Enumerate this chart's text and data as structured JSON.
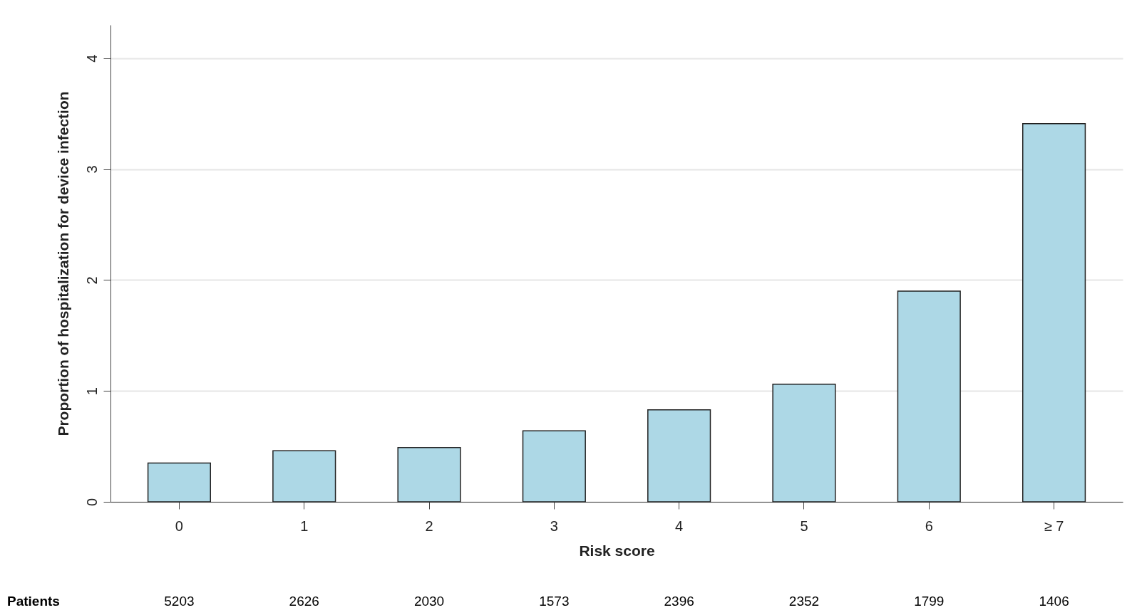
{
  "chart_data": {
    "type": "bar",
    "xlabel": "Risk score",
    "ylabel": "Proportion of hospitalization for device infection",
    "categories": [
      "0",
      "1",
      "2",
      "3",
      "4",
      "5",
      "6",
      "≥ 7"
    ],
    "values": [
      0.35,
      0.46,
      0.49,
      0.64,
      0.83,
      1.06,
      1.9,
      3.41
    ],
    "color": "#add8e6",
    "ylim": [
      0,
      4.3
    ],
    "yticks": [
      0,
      1,
      2,
      3,
      4
    ],
    "grid": "y",
    "annotations": [
      "Patients",
      "5203",
      "2626",
      "2030",
      "1573",
      "2396",
      "2352",
      "1799",
      "1406"
    ]
  }
}
